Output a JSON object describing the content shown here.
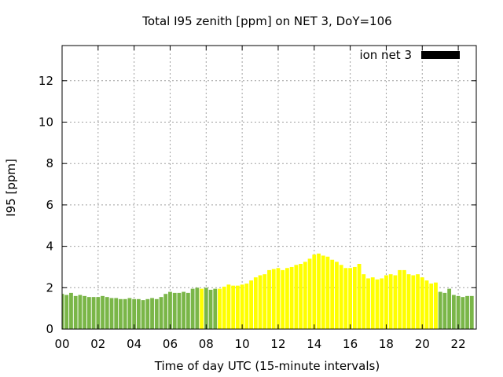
{
  "chart_data": {
    "type": "bar",
    "title": "Total I95 zenith [ppm] on NET 3, DoY=106",
    "xlabel": "Time of day UTC (15-minute intervals)",
    "ylabel": "I95 [ppm]",
    "xlim": [
      0,
      23
    ],
    "ylim": [
      0,
      13.7
    ],
    "x_ticks": [
      "00",
      "02",
      "04",
      "06",
      "08",
      "10",
      "12",
      "14",
      "16",
      "18",
      "20",
      "22"
    ],
    "x_tick_values": [
      0,
      2,
      4,
      6,
      8,
      10,
      12,
      14,
      16,
      18,
      20,
      22
    ],
    "y_ticks": [
      "0",
      "2",
      "4",
      "6",
      "8",
      "10",
      "12"
    ],
    "y_tick_values": [
      0,
      2,
      4,
      6,
      8,
      10,
      12
    ],
    "grid": true,
    "legend": {
      "position": "top-right",
      "entries": [
        {
          "label": "ion net 3",
          "color": "#000000"
        }
      ]
    },
    "bar_width_hours": 0.21,
    "colors": {
      "low": "#7ab648",
      "high": "#ffff00"
    },
    "series": [
      {
        "x": [
          0.0,
          0.25,
          0.5,
          0.75,
          1.0,
          1.25,
          1.5,
          1.75,
          2.0,
          2.25,
          2.5,
          2.75,
          3.0,
          3.25,
          3.5,
          3.75,
          4.0,
          4.25,
          4.5,
          4.75,
          5.0,
          5.25,
          5.5,
          5.75,
          6.0,
          6.25,
          6.5,
          6.75,
          7.0,
          7.25,
          7.5,
          7.75,
          8.0,
          8.25,
          8.5,
          8.75,
          9.0,
          9.25,
          9.5,
          9.75,
          10.0,
          10.25,
          10.5,
          10.75,
          11.0,
          11.25,
          11.5,
          11.75,
          12.0,
          12.25,
          12.5,
          12.75,
          13.0,
          13.25,
          13.5,
          13.75,
          14.0,
          14.25,
          14.5,
          14.75,
          15.0,
          15.25,
          15.5,
          15.75,
          16.0,
          16.25,
          16.5,
          16.75,
          17.0,
          17.25,
          17.5,
          17.75,
          18.0,
          18.25,
          18.5,
          18.75,
          19.0,
          19.25,
          19.5,
          19.75,
          20.0,
          20.25,
          20.5,
          20.75,
          21.0,
          21.25,
          21.5,
          21.75,
          22.0,
          22.25,
          22.5,
          22.75
        ],
        "values": [
          1.7,
          1.65,
          1.75,
          1.6,
          1.65,
          1.6,
          1.55,
          1.55,
          1.55,
          1.6,
          1.55,
          1.5,
          1.5,
          1.45,
          1.45,
          1.5,
          1.45,
          1.45,
          1.4,
          1.45,
          1.5,
          1.45,
          1.55,
          1.7,
          1.8,
          1.75,
          1.75,
          1.8,
          1.75,
          1.95,
          2.0,
          1.95,
          2.0,
          1.9,
          1.95,
          1.95,
          2.05,
          2.15,
          2.1,
          2.1,
          2.15,
          2.2,
          2.35,
          2.5,
          2.6,
          2.65,
          2.85,
          2.9,
          2.95,
          2.85,
          2.95,
          3.0,
          3.1,
          3.15,
          3.25,
          3.4,
          3.6,
          3.65,
          3.55,
          3.5,
          3.35,
          3.25,
          3.1,
          2.95,
          2.95,
          3.0,
          3.15,
          2.65,
          2.45,
          2.5,
          2.4,
          2.45,
          2.6,
          2.65,
          2.6,
          2.85,
          2.85,
          2.65,
          2.6,
          2.65,
          2.5,
          2.35,
          2.2,
          2.25,
          1.8,
          1.75,
          1.95,
          1.65,
          1.6,
          1.55,
          1.6,
          1.6
        ],
        "level": [
          "low",
          "low",
          "low",
          "low",
          "low",
          "low",
          "low",
          "low",
          "low",
          "low",
          "low",
          "low",
          "low",
          "low",
          "low",
          "low",
          "low",
          "low",
          "low",
          "low",
          "low",
          "low",
          "low",
          "low",
          "low",
          "low",
          "low",
          "low",
          "low",
          "low",
          "low",
          "high",
          "low",
          "low",
          "low",
          "high",
          "high",
          "high",
          "high",
          "high",
          "high",
          "high",
          "high",
          "high",
          "high",
          "high",
          "high",
          "high",
          "high",
          "high",
          "high",
          "high",
          "high",
          "high",
          "high",
          "high",
          "high",
          "high",
          "high",
          "high",
          "high",
          "high",
          "high",
          "high",
          "high",
          "high",
          "high",
          "high",
          "high",
          "high",
          "high",
          "high",
          "high",
          "high",
          "high",
          "high",
          "high",
          "high",
          "high",
          "high",
          "high",
          "high",
          "high",
          "high",
          "low",
          "low",
          "low",
          "low",
          "low",
          "low",
          "low",
          "low"
        ]
      }
    ]
  }
}
